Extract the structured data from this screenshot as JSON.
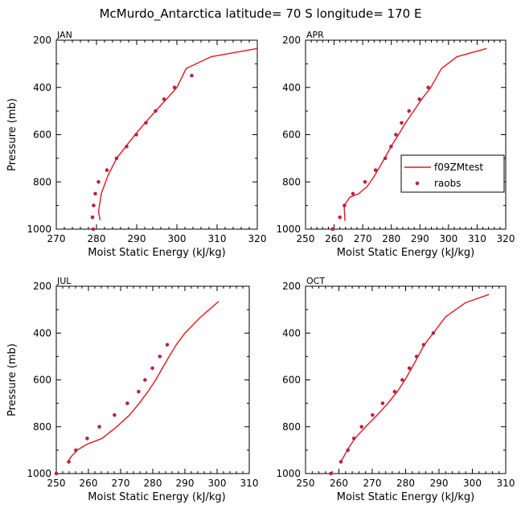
{
  "title": "McMurdo_Antarctica  latitude= 70 S longitude= 170 E",
  "legend": {
    "model_label": "f09ZMtest",
    "obs_label": "raobs"
  },
  "colors": {
    "model": "#e8141c",
    "obs": "#b5234e"
  },
  "chart_data": [
    {
      "type": "line",
      "panel": "JAN",
      "xlabel": "Moist Static Energy (kJ/kg)",
      "ylabel": "Pressure (mb)",
      "xlim": [
        270,
        320
      ],
      "xticks": [
        270,
        280,
        290,
        300,
        310,
        320
      ],
      "ylim": [
        1000,
        200
      ],
      "yticks": [
        200,
        400,
        600,
        800,
        1000
      ],
      "series": [
        {
          "name": "f09ZMtest",
          "kind": "line",
          "x": [
            280.9,
            280.5,
            281.2,
            282.8,
            285.0,
            287.3,
            289.6,
            292.1,
            294.7,
            297.4,
            300.0,
            302.3,
            308.5,
            320.0
          ],
          "y": [
            962,
            925,
            850,
            775,
            700,
            650,
            600,
            550,
            500,
            450,
            400,
            320,
            270,
            235
          ]
        },
        {
          "name": "raobs",
          "kind": "scatter",
          "x": [
            279.2,
            279.0,
            279.3,
            279.7,
            280.5,
            282.6,
            285.0,
            287.5,
            289.9,
            292.3,
            294.7,
            296.8,
            299.4,
            303.7
          ],
          "y": [
            1000,
            950,
            900,
            850,
            800,
            750,
            700,
            650,
            600,
            550,
            500,
            450,
            400,
            350
          ]
        }
      ]
    },
    {
      "type": "line",
      "panel": "APR",
      "xlabel": "Moist Static Energy (kJ/kg)",
      "ylabel": "",
      "xlim": [
        250,
        320
      ],
      "xticks": [
        250,
        260,
        270,
        280,
        290,
        300,
        310,
        320
      ],
      "ylim": [
        1000,
        200
      ],
      "yticks": [
        200,
        400,
        600,
        800,
        1000
      ],
      "legend_position": "right-middle",
      "series": [
        {
          "name": "f09ZMtest",
          "kind": "line",
          "x": [
            263.8,
            263.5,
            265.5,
            268.6,
            271.5,
            273.8,
            276.0,
            278.1,
            280.2,
            282.5,
            285.0,
            287.8,
            290.6,
            293.8,
            297.5,
            302.9,
            313.3
          ],
          "y": [
            965,
            900,
            865,
            850,
            820,
            780,
            735,
            690,
            645,
            600,
            550,
            500,
            450,
            400,
            320,
            270,
            235
          ]
        },
        {
          "name": "raobs",
          "kind": "scatter",
          "x": [
            259.5,
            262.0,
            263.6,
            266.6,
            270.8,
            274.5,
            277.9,
            279.9,
            281.6,
            283.6,
            286.2,
            289.8,
            292.9
          ],
          "y": [
            1000,
            950,
            900,
            850,
            800,
            750,
            700,
            650,
            600,
            550,
            500,
            450,
            400
          ]
        }
      ]
    },
    {
      "type": "line",
      "panel": "JUL",
      "xlabel": "Moist Static Energy (kJ/kg)",
      "ylabel": "Pressure (mb)",
      "xlim": [
        250,
        310
      ],
      "xticks": [
        250,
        260,
        270,
        280,
        290,
        300,
        310
      ],
      "ylim": [
        1000,
        200
      ],
      "yticks": [
        200,
        400,
        600,
        800,
        1000
      ],
      "series": [
        {
          "name": "f09ZMtest",
          "kind": "line",
          "x": [
            253.5,
            254.8,
            256.5,
            259.5,
            264.2,
            268.8,
            272.8,
            275.8,
            278.5,
            280.9,
            283.0,
            285.1,
            287.3,
            290.0,
            295.0,
            300.5
          ],
          "y": [
            950,
            925,
            900,
            875,
            850,
            800,
            750,
            700,
            650,
            600,
            550,
            500,
            450,
            400,
            330,
            265
          ]
        },
        {
          "name": "raobs",
          "kind": "scatter",
          "x": [
            250.0,
            253.9,
            256.1,
            259.6,
            263.4,
            268.1,
            272.1,
            275.6,
            277.6,
            279.9,
            282.2,
            284.5
          ],
          "y": [
            1000,
            950,
            900,
            850,
            800,
            750,
            700,
            650,
            600,
            550,
            500,
            450
          ]
        }
      ]
    },
    {
      "type": "line",
      "panel": "OCT",
      "xlabel": "Moist Static Energy (kJ/kg)",
      "ylabel": "",
      "xlim": [
        250,
        310
      ],
      "xticks": [
        250,
        260,
        270,
        280,
        290,
        300,
        310
      ],
      "ylim": [
        1000,
        200
      ],
      "yticks": [
        200,
        400,
        600,
        800,
        1000
      ],
      "series": [
        {
          "name": "f09ZMtest",
          "kind": "line",
          "x": [
            260.2,
            261.0,
            262.5,
            264.8,
            268.0,
            271.5,
            274.7,
            277.5,
            279.8,
            281.8,
            283.7,
            285.6,
            288.3,
            292.0,
            298.0,
            305.0
          ],
          "y": [
            950,
            940,
            900,
            850,
            800,
            750,
            700,
            650,
            600,
            550,
            500,
            450,
            400,
            330,
            270,
            235
          ]
        },
        {
          "name": "raobs",
          "kind": "scatter",
          "x": [
            257.6,
            260.6,
            262.7,
            264.5,
            266.8,
            270.1,
            273.1,
            276.7,
            279.0,
            281.1,
            283.3,
            285.4,
            288.3
          ],
          "y": [
            1000,
            950,
            900,
            850,
            800,
            750,
            700,
            650,
            600,
            550,
            500,
            450,
            400
          ]
        }
      ]
    }
  ]
}
